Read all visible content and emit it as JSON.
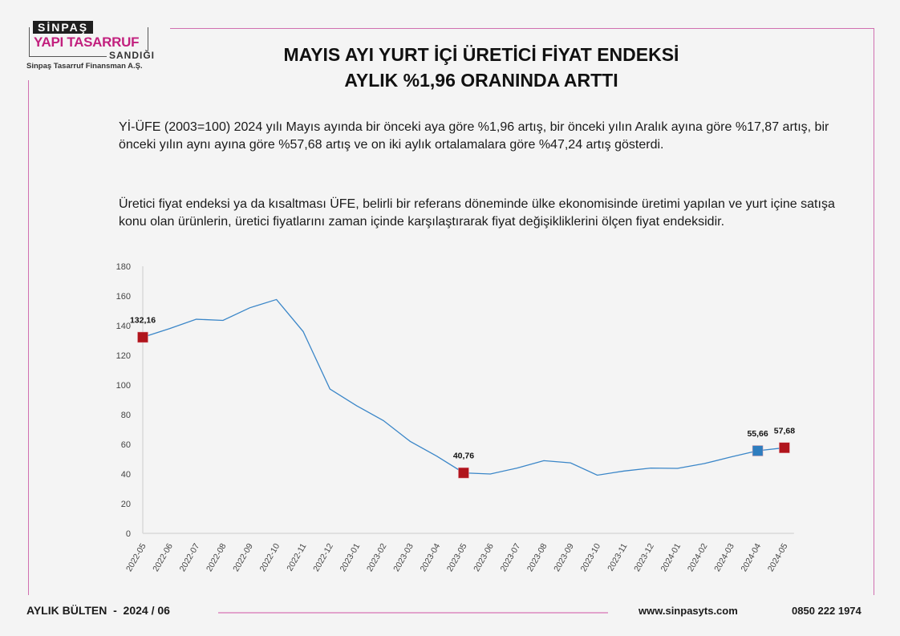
{
  "logo": {
    "line1": "SİNPAŞ",
    "line2": "YAPI TASARRUF",
    "line3": "SANDIĞI",
    "subtitle": "Sinpaş Tasarruf Finansman A.Ş."
  },
  "title": {
    "line1": "MAYIS AYI YURT İÇİ ÜRETİCİ FİYAT ENDEKSİ",
    "line2": "AYLIK %1,96 ORANINDA  ARTTI"
  },
  "paragraphs": [
    "Yİ-ÜFE (2003=100) 2024 yılı Mayıs ayında bir önceki aya göre %1,96 artış, bir önceki yılın Aralık ayına göre %17,87 artış, bir önceki yılın aynı ayına göre %57,68 artış ve on iki aylık ortalamalara göre %47,24 artış gösterdi.",
    "Üretici fiyat endeksi ya da kısaltması ÜFE, belirli bir referans döneminde ülke ekonomisinde üretimi yapılan ve yurt içine satışa konu olan ürünlerin, üretici fiyatlarını zaman içinde karşılaştırarak fiyat değişikliklerini ölçen fiyat endeksidir."
  ],
  "chart_data": {
    "type": "line",
    "categories": [
      "2022-05",
      "2022-06",
      "2022-07",
      "2022-08",
      "2022-09",
      "2022-10",
      "2022-11",
      "2022-12",
      "2023-01",
      "2023-02",
      "2023-03",
      "2023-04",
      "2023-05",
      "2023-06",
      "2023-07",
      "2023-08",
      "2023-09",
      "2023-10",
      "2023-11",
      "2023-12",
      "2024-01",
      "2024-02",
      "2024-03",
      "2024-04",
      "2024-05"
    ],
    "values": [
      132.16,
      138,
      144.3,
      143.5,
      152,
      157.6,
      136,
      97.3,
      86,
      76,
      62,
      52,
      40.76,
      40,
      44,
      49,
      47.5,
      39.2,
      42,
      44,
      43.8,
      47,
      51.5,
      55.66,
      57.68
    ],
    "ylim": [
      0,
      180
    ],
    "yticks": [
      0,
      20,
      40,
      60,
      80,
      100,
      120,
      140,
      160,
      180
    ],
    "grid": false,
    "line_color": "#3a86c8",
    "highlights": [
      {
        "index": 0,
        "label": "132,16",
        "color": "#b0141c"
      },
      {
        "index": 12,
        "label": "40,76",
        "color": "#b0141c"
      },
      {
        "index": 23,
        "label": "55,66",
        "color": "#2e7dbf"
      },
      {
        "index": 24,
        "label": "57,68",
        "color": "#b0141c"
      }
    ]
  },
  "footer": {
    "bulletin": "AYLIK BÜLTEN  -  2024 / 06",
    "url": "www.sinpasyts.com",
    "phone": "0850 222 1974"
  },
  "colors": {
    "accent": "#c2207e",
    "frame": "#d070b0"
  }
}
